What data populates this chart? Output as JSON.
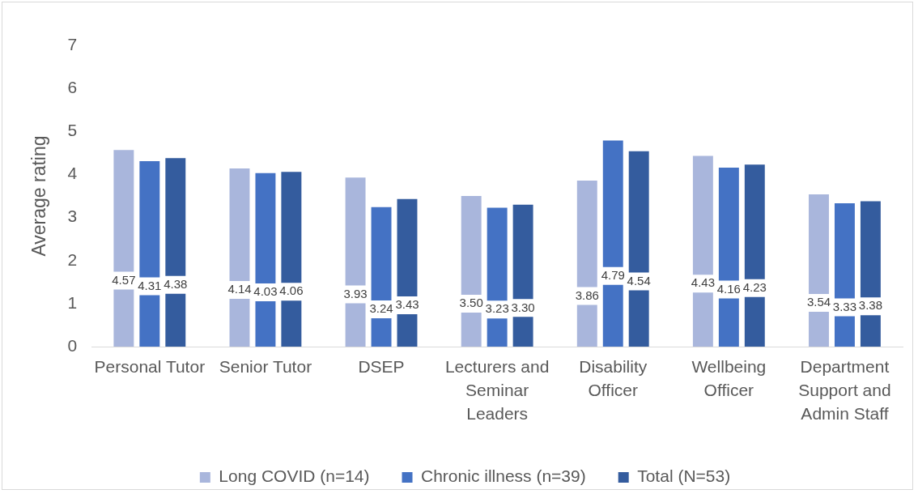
{
  "chart_data": {
    "type": "bar",
    "ylabel": "Average rating",
    "categories": [
      "Personal Tutor",
      "Senior Tutor",
      "DSEP",
      "Lecturers and Seminar Leaders",
      "Disability Officer",
      "Wellbeing Officer",
      "Department Support and Admin Staff"
    ],
    "series": [
      {
        "name": "Long COVID (n=14)",
        "color": "#a9b6dc",
        "values": [
          4.57,
          4.14,
          3.93,
          3.5,
          3.86,
          4.43,
          3.54
        ],
        "value_labels": [
          "4.57",
          "4.14",
          "3.93",
          "3.50",
          "3.86",
          "4.43",
          "3.54"
        ]
      },
      {
        "name": "Chronic illness (n=39)",
        "color": "#4472c4",
        "values": [
          4.31,
          4.03,
          3.24,
          3.23,
          4.79,
          4.16,
          3.33
        ],
        "value_labels": [
          "4.31",
          "4.03",
          "3.24",
          "3.23",
          "4.79",
          "4.16",
          "3.33"
        ]
      },
      {
        "name": "Total (N=53)",
        "color": "#345c9e",
        "values": [
          4.38,
          4.06,
          3.43,
          3.3,
          4.54,
          4.23,
          3.38
        ],
        "value_labels": [
          "4.38",
          "4.06",
          "3.43",
          "3.30",
          "4.54",
          "4.23",
          "3.38"
        ]
      }
    ],
    "ylim": [
      0,
      7
    ],
    "yticks": [
      0,
      1,
      2,
      3,
      4,
      5,
      6,
      7
    ],
    "grid": false,
    "legend": "bottom"
  }
}
